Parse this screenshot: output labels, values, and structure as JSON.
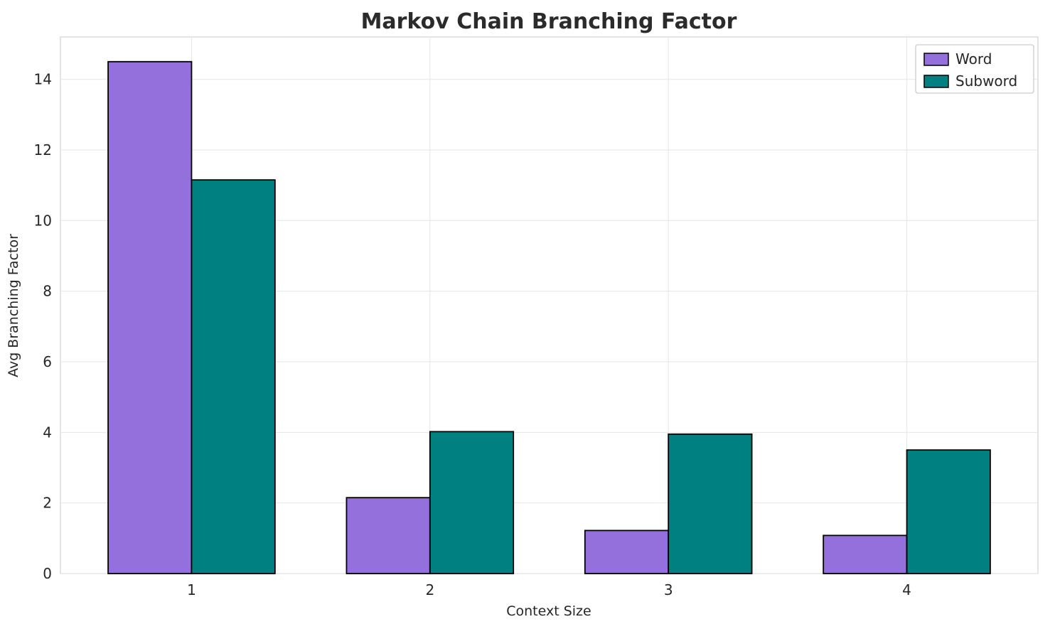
{
  "chart_data": {
    "type": "bar",
    "title": "Markov Chain Branching Factor",
    "xlabel": "Context Size",
    "ylabel": "Avg Branching Factor",
    "categories": [
      "1",
      "2",
      "3",
      "4"
    ],
    "series": [
      {
        "name": "Word",
        "color": "#9370db",
        "values": [
          14.5,
          2.15,
          1.22,
          1.08
        ]
      },
      {
        "name": "Subword",
        "color": "#008080",
        "values": [
          11.15,
          4.02,
          3.95,
          3.5
        ]
      }
    ],
    "ylim": [
      0,
      15.2
    ],
    "yticks": [
      0,
      2,
      4,
      6,
      8,
      10,
      12,
      14
    ],
    "grid": true,
    "legend_position": "upper right",
    "legend_labels": [
      "Word",
      "Subword"
    ],
    "bar_edge_color": "#000000",
    "background_color": "#ffffff"
  }
}
